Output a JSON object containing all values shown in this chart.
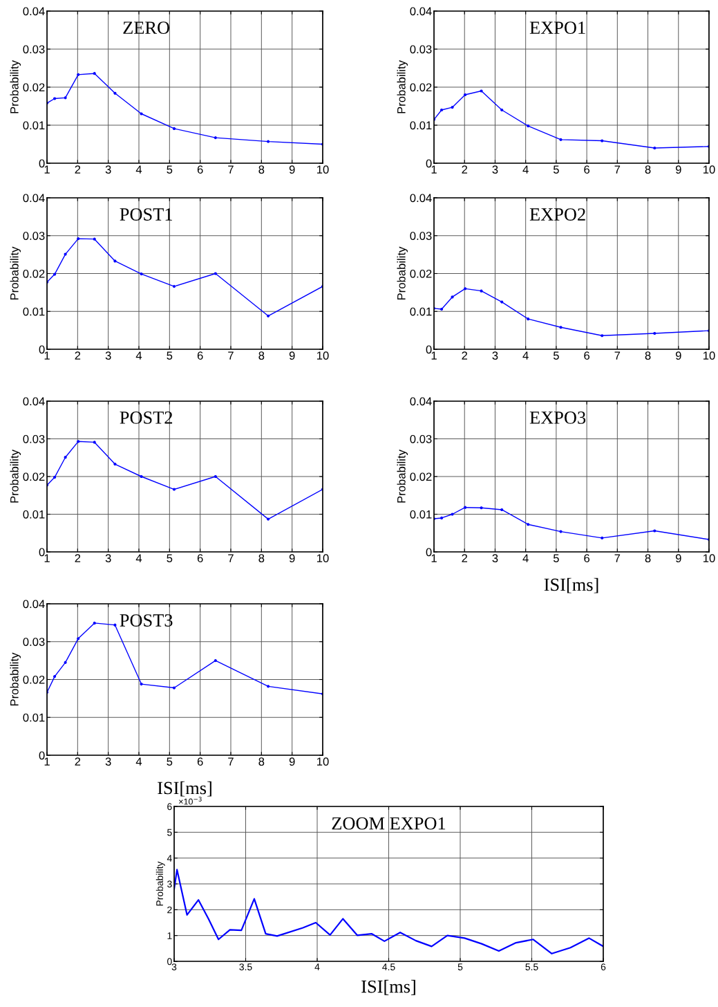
{
  "chart_data": [
    {
      "type": "line",
      "title": "ZERO",
      "ylabel": "Probability",
      "x": [
        1,
        1.25,
        1.6,
        2.02,
        2.55,
        3.22,
        4.08,
        5.15,
        6.5,
        8.22,
        10
      ],
      "series": [
        {
          "color": "#0000ff",
          "values": [
            0.0158,
            0.017,
            0.0172,
            0.0233,
            0.0236,
            0.0184,
            0.013,
            0.0091,
            0.0067,
            0.0057,
            0.005
          ]
        }
      ],
      "xlim": [
        1,
        10
      ],
      "xticks": [
        1,
        2,
        3,
        4,
        5,
        6,
        7,
        8,
        9,
        10
      ],
      "ylim": [
        0,
        0.04
      ],
      "yticks": [
        0,
        0.01,
        0.02,
        0.03,
        0.04
      ],
      "grid": true,
      "marker": "circle"
    },
    {
      "type": "line",
      "title": "EXPO1",
      "ylabel": "Probability",
      "x": [
        1,
        1.25,
        1.6,
        2.02,
        2.55,
        3.22,
        4.08,
        5.15,
        6.5,
        8.22,
        10
      ],
      "series": [
        {
          "color": "#0000ff",
          "values": [
            0.0115,
            0.014,
            0.0147,
            0.018,
            0.019,
            0.014,
            0.0098,
            0.0062,
            0.0059,
            0.004,
            0.0044
          ]
        }
      ],
      "xlim": [
        1,
        10
      ],
      "xticks": [
        1,
        2,
        3,
        4,
        5,
        6,
        7,
        8,
        9,
        10
      ],
      "ylim": [
        0,
        0.04
      ],
      "yticks": [
        0,
        0.01,
        0.02,
        0.03,
        0.04
      ],
      "grid": true,
      "marker": "circle"
    },
    {
      "type": "line",
      "title": "POST1",
      "ylabel": "Probability",
      "x": [
        1,
        1.25,
        1.6,
        2.02,
        2.55,
        3.22,
        4.08,
        5.15,
        6.5,
        8.22,
        10
      ],
      "series": [
        {
          "color": "#0000ff",
          "values": [
            0.0177,
            0.0198,
            0.0251,
            0.0292,
            0.0291,
            0.0233,
            0.0199,
            0.0166,
            0.02,
            0.0088,
            0.0166
          ]
        }
      ],
      "xlim": [
        1,
        10
      ],
      "xticks": [
        1,
        2,
        3,
        4,
        5,
        6,
        7,
        8,
        9,
        10
      ],
      "ylim": [
        0,
        0.04
      ],
      "yticks": [
        0,
        0.01,
        0.02,
        0.03,
        0.04
      ],
      "grid": true,
      "marker": "circle"
    },
    {
      "type": "line",
      "title": "EXPO2",
      "ylabel": "Probability",
      "x": [
        1,
        1.25,
        1.6,
        2.02,
        2.55,
        3.22,
        4.08,
        5.15,
        6.5,
        8.22,
        10
      ],
      "series": [
        {
          "color": "#0000ff",
          "values": [
            0.0108,
            0.0106,
            0.0138,
            0.016,
            0.0154,
            0.0125,
            0.008,
            0.0058,
            0.0036,
            0.0042,
            0.0049
          ]
        }
      ],
      "xlim": [
        1,
        10
      ],
      "xticks": [
        1,
        2,
        3,
        4,
        5,
        6,
        7,
        8,
        9,
        10
      ],
      "ylim": [
        0,
        0.04
      ],
      "yticks": [
        0,
        0.01,
        0.02,
        0.03,
        0.04
      ],
      "grid": true,
      "marker": "circle"
    },
    {
      "type": "line",
      "title": "POST2",
      "ylabel": "Probability",
      "x": [
        1,
        1.25,
        1.6,
        2.02,
        2.55,
        3.22,
        4.08,
        5.15,
        6.5,
        8.22,
        10
      ],
      "series": [
        {
          "color": "#0000ff",
          "values": [
            0.0177,
            0.0198,
            0.0251,
            0.0293,
            0.0291,
            0.0233,
            0.02,
            0.0166,
            0.02,
            0.0087,
            0.0166
          ]
        }
      ],
      "xlim": [
        1,
        10
      ],
      "xticks": [
        1,
        2,
        3,
        4,
        5,
        6,
        7,
        8,
        9,
        10
      ],
      "ylim": [
        0,
        0.04
      ],
      "yticks": [
        0,
        0.01,
        0.02,
        0.03,
        0.04
      ],
      "grid": true,
      "marker": "circle"
    },
    {
      "type": "line",
      "title": "EXPO3",
      "ylabel": "Probability",
      "xlabel": "ISI[ms]",
      "x": [
        1,
        1.25,
        1.6,
        2.02,
        2.55,
        3.22,
        4.08,
        5.15,
        6.5,
        8.22,
        10
      ],
      "series": [
        {
          "color": "#0000ff",
          "values": [
            0.0088,
            0.009,
            0.01,
            0.0118,
            0.0117,
            0.0112,
            0.0073,
            0.0054,
            0.0037,
            0.0056,
            0.0033
          ]
        }
      ],
      "xlim": [
        1,
        10
      ],
      "xticks": [
        1,
        2,
        3,
        4,
        5,
        6,
        7,
        8,
        9,
        10
      ],
      "ylim": [
        0,
        0.04
      ],
      "yticks": [
        0,
        0.01,
        0.02,
        0.03,
        0.04
      ],
      "grid": true,
      "marker": "circle"
    },
    {
      "type": "line",
      "title": "POST3",
      "ylabel": "Probability",
      "xlabel": "ISI[ms]",
      "x": [
        1,
        1.25,
        1.6,
        2.02,
        2.55,
        3.22,
        4.08,
        5.15,
        6.5,
        8.22,
        10
      ],
      "series": [
        {
          "color": "#0000ff",
          "values": [
            0.0166,
            0.0208,
            0.0245,
            0.0308,
            0.0349,
            0.0344,
            0.0188,
            0.0178,
            0.025,
            0.0182,
            0.0162
          ]
        }
      ],
      "xlim": [
        1,
        10
      ],
      "xticks": [
        1,
        2,
        3,
        4,
        5,
        6,
        7,
        8,
        9,
        10
      ],
      "ylim": [
        0,
        0.04
      ],
      "yticks": [
        0,
        0.01,
        0.02,
        0.03,
        0.04
      ],
      "grid": true,
      "marker": "circle"
    },
    {
      "type": "line",
      "title": "ZOOM EXPO1",
      "ylabel": "Probability",
      "xlabel": "ISI[ms]",
      "annotations": [
        "×10$^{−3}$"
      ],
      "x": [
        3.0,
        3.02,
        3.09,
        3.17,
        3.24,
        3.31,
        3.39,
        3.47,
        3.56,
        3.64,
        3.72,
        3.9,
        3.99,
        4.09,
        4.18,
        4.28,
        4.38,
        4.47,
        4.58,
        4.69,
        4.8,
        4.91,
        5.03,
        5.15,
        5.27,
        5.39,
        5.51,
        5.64,
        5.77,
        5.9,
        6.0
      ],
      "series": [
        {
          "color": "#0000ff",
          "values": [
            2.8,
            3.55,
            1.8,
            2.38,
            1.65,
            0.85,
            1.22,
            1.2,
            2.42,
            1.07,
            0.98,
            1.3,
            1.5,
            1.02,
            1.65,
            1.01,
            1.07,
            0.78,
            1.12,
            0.8,
            0.58,
            1.0,
            0.9,
            0.68,
            0.4,
            0.72,
            0.85,
            0.3,
            0.53,
            0.9,
            0.58
          ]
        }
      ],
      "xlim": [
        3,
        6
      ],
      "xticks": [
        3,
        3.5,
        4,
        4.5,
        5,
        5.5,
        6
      ],
      "ylim": [
        0,
        6
      ],
      "yticks": [
        0,
        1,
        2,
        3,
        4,
        5,
        6
      ],
      "grid": true,
      "marker": "none"
    }
  ]
}
